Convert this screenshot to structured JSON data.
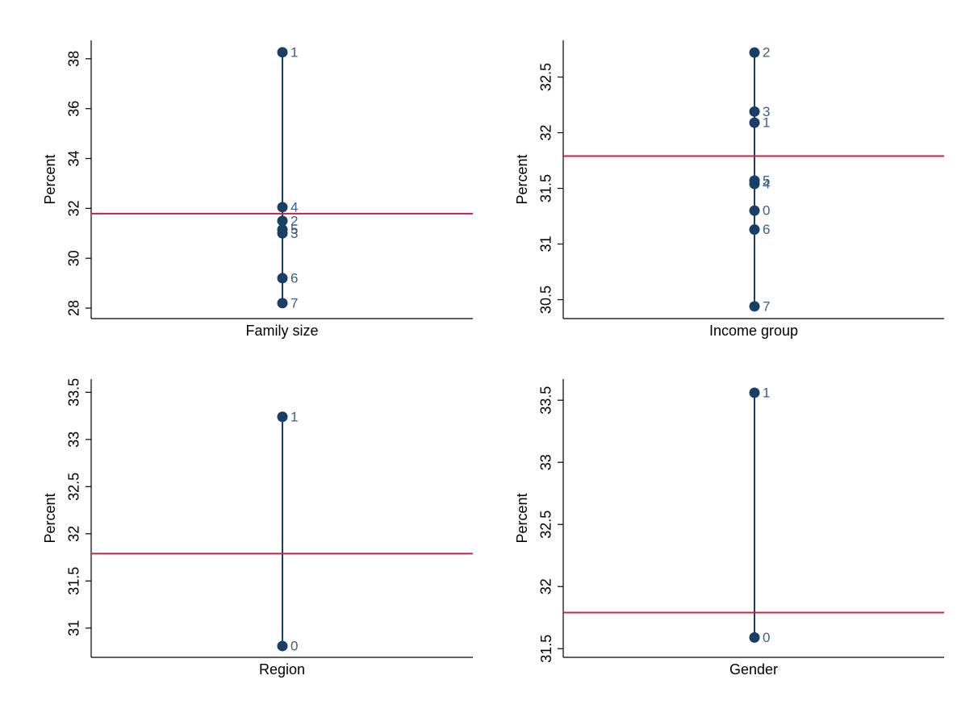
{
  "chart_data": [
    {
      "type": "dot",
      "x_label": "Family size",
      "y_label": "Percent",
      "categories": [
        "1",
        "4",
        "2",
        "5",
        "3",
        "6",
        "7"
      ],
      "values": [
        38.26,
        32.05,
        31.5,
        31.15,
        31.0,
        29.2,
        28.2
      ],
      "color": "#1a3f66",
      "reference_line": 31.79,
      "reference_color": "#c8214a",
      "ylim": [
        27.58,
        38.74
      ],
      "yticks": [
        28,
        30,
        32,
        34,
        36,
        38
      ]
    },
    {
      "type": "dot",
      "x_label": "Income group",
      "y_label": "Percent",
      "categories": [
        "2",
        "3",
        "1",
        "5",
        "4",
        "0",
        "6",
        "7"
      ],
      "values": [
        32.72,
        32.19,
        32.09,
        31.57,
        31.54,
        31.3,
        31.13,
        30.44
      ],
      "color": "#1a3f66",
      "reference_line": 31.79,
      "reference_color": "#c8214a",
      "ylim": [
        30.33,
        32.83
      ],
      "yticks": [
        30.5,
        31,
        31.5,
        32,
        32.5
      ]
    },
    {
      "type": "dot",
      "x_label": "Region",
      "y_label": "Percent",
      "categories": [
        "1",
        "0"
      ],
      "values": [
        33.24,
        30.81
      ],
      "color": "#1a3f66",
      "reference_line": 31.79,
      "reference_color": "#c8214a",
      "ylim": [
        30.69,
        33.64
      ],
      "yticks": [
        31,
        31.5,
        32,
        32.5,
        33,
        33.5
      ]
    },
    {
      "type": "dot",
      "x_label": "Gender",
      "y_label": "Percent",
      "categories": [
        "1",
        "0"
      ],
      "values": [
        33.56,
        31.59
      ],
      "color": "#1a3f66",
      "reference_line": 31.79,
      "reference_color": "#c8214a",
      "ylim": [
        31.43,
        33.67
      ],
      "yticks": [
        31.5,
        32,
        32.5,
        33,
        33.5
      ]
    }
  ]
}
